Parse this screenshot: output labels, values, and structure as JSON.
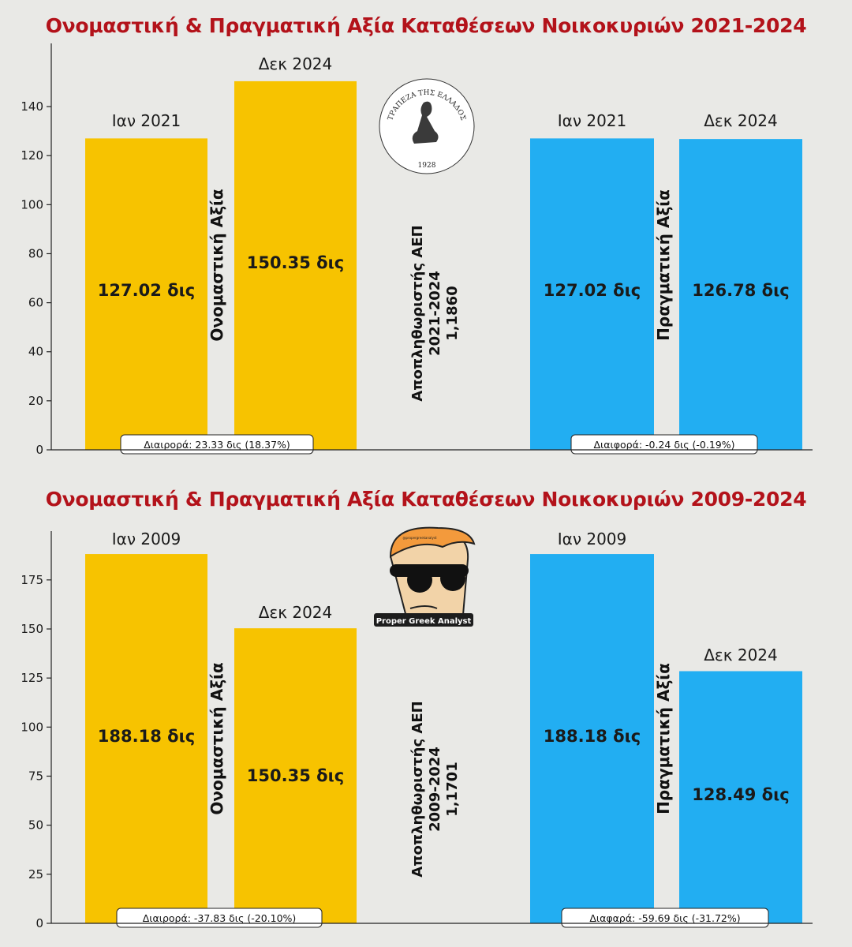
{
  "chart_data": [
    {
      "type": "bar",
      "title": "Ονομαστική & Πραγματική Αξία Καταθέσεων Νοικοκυριών 2021-2024",
      "ylim": [
        0,
        150
      ],
      "yticks": [
        0,
        20,
        40,
        60,
        80,
        100,
        120,
        140
      ],
      "grid": false,
      "groups": [
        {
          "name": "Ονομαστική Αξία",
          "color": "#f7c300",
          "bars": [
            {
              "category": "Ιαν 2021",
              "value": 127.02,
              "label": "127.02 δις"
            },
            {
              "category": "Δεκ 2024",
              "value": 150.35,
              "label": "150.35 δις"
            }
          ],
          "difference": "Διαιρορά: 23.33 δις (18.37%)"
        },
        {
          "name": "Πραγματική Αξία",
          "color": "#22aef2",
          "bars": [
            {
              "category": "Ιαν 2021",
              "value": 127.02,
              "label": "127.02 δις"
            },
            {
              "category": "Δεκ 2024",
              "value": 126.78,
              "label": "126.78 δις"
            }
          ],
          "difference": "Διαιφορά: -0.24 δις (-0.19%)"
        }
      ],
      "deflator": [
        "Αποπληθωριστής ΑΕΠ",
        "2021-2024",
        "1,1860"
      ]
    },
    {
      "type": "bar",
      "title": "Ονομαστική & Πραγματική Αξία Καταθέσεων Νοικοκυριών 2009-2024",
      "ylim": [
        0,
        190
      ],
      "yticks": [
        0,
        25,
        50,
        75,
        100,
        125,
        150,
        175
      ],
      "grid": false,
      "groups": [
        {
          "name": "Ονομαστική Αξία",
          "color": "#f7c300",
          "bars": [
            {
              "category": "Ιαν 2009",
              "value": 188.18,
              "label": "188.18 δις"
            },
            {
              "category": "Δεκ 2024",
              "value": 150.35,
              "label": "150.35 δις"
            }
          ],
          "difference": "Διαιρορά: -37.83 δις (-20.10%)"
        },
        {
          "name": "Πραγματική Αξία",
          "color": "#22aef2",
          "bars": [
            {
              "category": "Ιαν 2009",
              "value": 188.18,
              "label": "188.18 δις"
            },
            {
              "category": "Δεκ 2024",
              "value": 128.49,
              "label": "128.49 δις"
            }
          ],
          "difference": "Διαφαρά: -59.69 δις (-31.72%)"
        }
      ],
      "deflator": [
        "Αποπληθωριστής ΑΕΠ",
        "2009-2024",
        "1,1701"
      ]
    }
  ],
  "logos": {
    "bank_seal_text": "ΤΡΑΠΕΖΑ ΤΗΣ ΕΛΛΑΔΟΣ",
    "bank_seal_year": "1928",
    "analyst_name": "Proper Greek Analyst",
    "analyst_tag": "@propergreekanalyst"
  }
}
